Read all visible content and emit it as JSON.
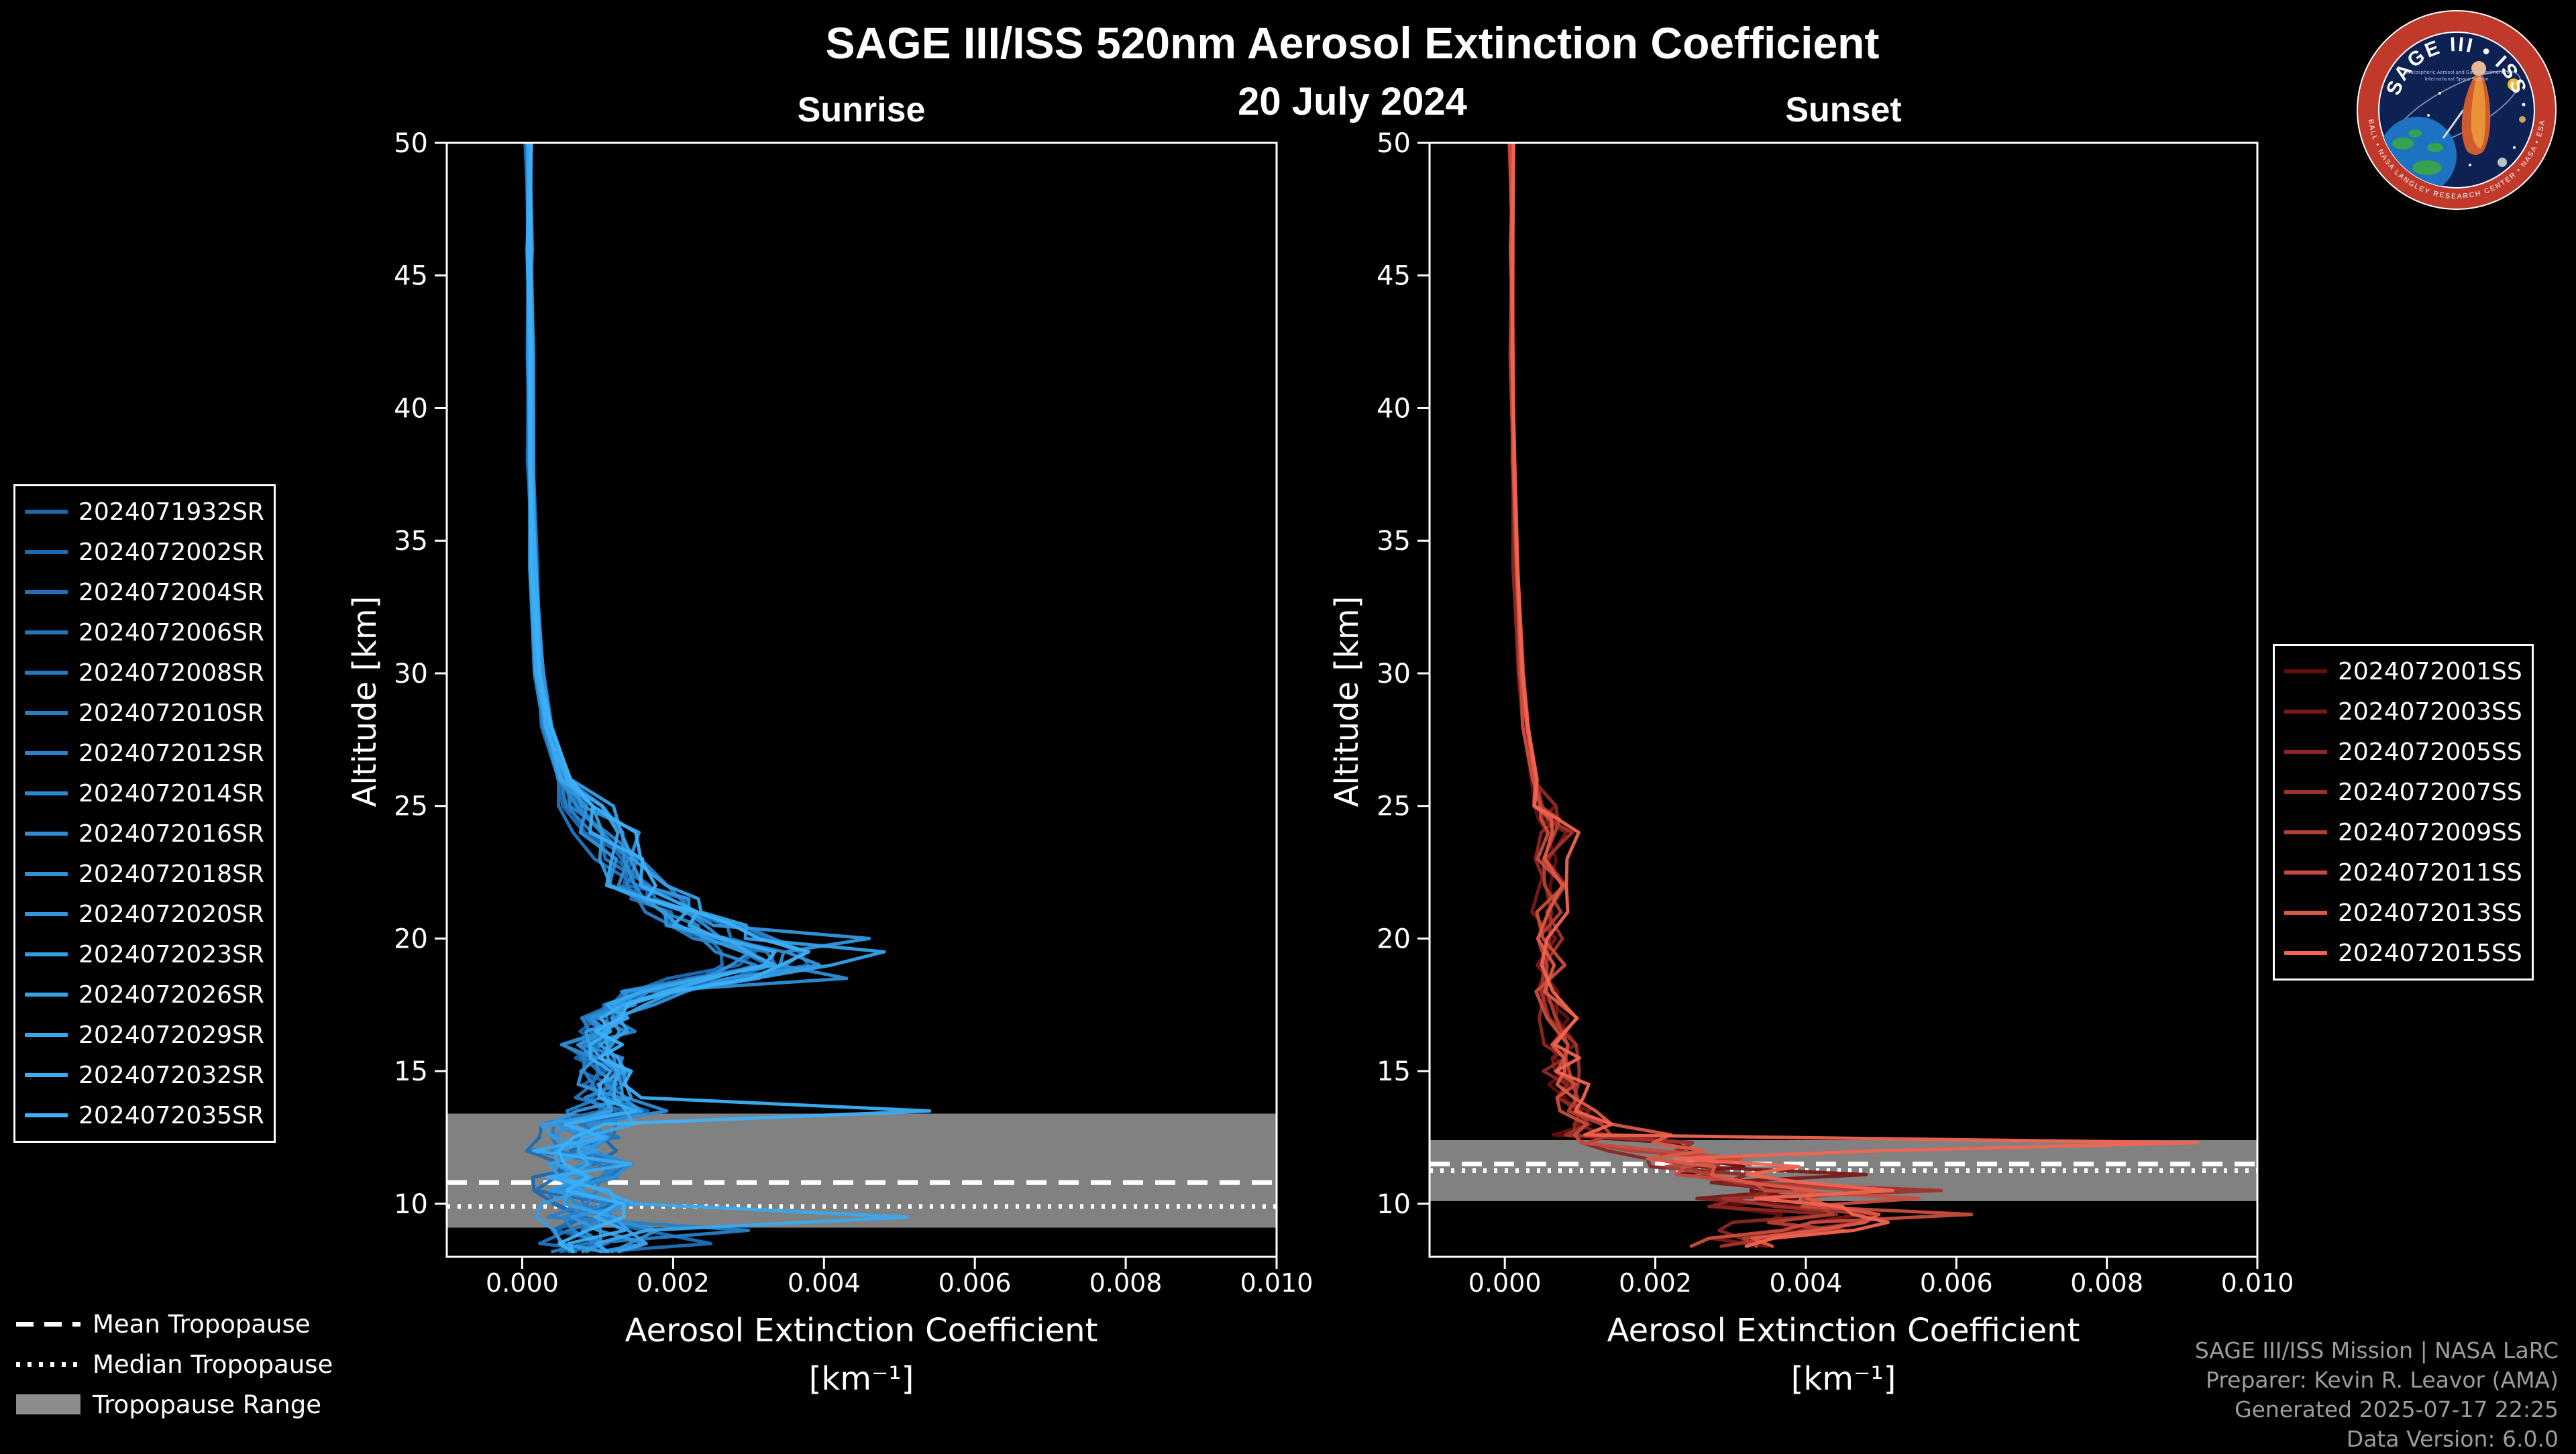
{
  "header": {
    "title": "SAGE III/ISS 520nm Aerosol Extinction Coefficient",
    "date": "20 July 2024"
  },
  "logo": {
    "name": "SAGE III • ISS",
    "subtitle_1": "Stratospheric Aerosol and Gas Experiment III",
    "subtitle_2": "International Space Station",
    "ring_text": "BALL • NASA LANGLEY RESEARCH CENTER • NASA • ESA"
  },
  "tropopause_legend": {
    "mean_label": "Mean Tropopause",
    "median_label": "Median Tropopause",
    "range_label": "Tropopause Range"
  },
  "credits": {
    "line1": "SAGE III/ISS Mission | NASA LaRC",
    "line2": "Preparer: Kevin R. Leavor (AMA)",
    "line3": "Generated 2025-07-17 22:25",
    "line4": "Data Version: 6.0.0"
  },
  "colors": {
    "background": "#000000",
    "foreground": "#ffffff",
    "credits_text": "#9c9ca0",
    "tropopause_band": "#8c8c8c",
    "sunrise_accent": "#2f92da",
    "sunset_accent": "#dc5847"
  },
  "chart_data": [
    {
      "type": "line",
      "title": "Sunrise",
      "ylabel": "Altitude [km]",
      "xlabel": "Aerosol Extinction Coefficient",
      "xlabel_units": "[km⁻¹]",
      "xlim": [
        -0.001,
        0.01
      ],
      "ylim": [
        8,
        50
      ],
      "xticks": [
        0,
        0.002,
        0.004,
        0.006,
        0.008,
        0.01
      ],
      "xtick_labels": [
        "0.000",
        "0.002",
        "0.004",
        "0.006",
        "0.008",
        "0.010"
      ],
      "yticks": [
        10,
        15,
        20,
        25,
        30,
        35,
        40,
        45,
        50
      ],
      "grid": false,
      "legend_position": "outside-left",
      "tropopause": {
        "mean": 10.8,
        "median": 9.9,
        "range": [
          9.1,
          13.4
        ]
      },
      "base_profile": {
        "altitude": [
          50,
          46,
          42,
          38,
          34,
          30,
          28,
          26,
          25,
          24,
          23,
          22,
          21.5,
          21,
          20.5,
          20,
          19.5,
          19,
          18.5,
          18,
          17.5,
          17,
          16.5,
          16,
          15.5,
          15,
          14.5,
          14,
          13.5,
          13,
          12.5,
          12,
          11.5,
          11,
          10.5,
          10,
          9.5,
          9,
          8.5,
          8.2
        ],
        "extinction": [
          8e-05,
          9e-05,
          0.0001,
          0.00012,
          0.00015,
          0.00022,
          0.00032,
          0.00055,
          0.0008,
          0.0011,
          0.0013,
          0.0015,
          0.0017,
          0.002,
          0.0023,
          0.0027,
          0.0032,
          0.0033,
          0.0025,
          0.0017,
          0.0013,
          0.00115,
          0.00105,
          0.00095,
          0.001,
          0.00105,
          0.0011,
          0.00115,
          0.0012,
          0.0009,
          0.00075,
          0.0007,
          0.0008,
          0.0007,
          0.0006,
          0.0009,
          0.0008,
          0.0011,
          0.00095,
          0.001
        ]
      },
      "jitter_bands": [
        {
          "min_alt": 26,
          "amp": 4e-05
        },
        {
          "min_alt": 14,
          "amp": 0.00032
        },
        {
          "min_alt": 0,
          "amp": 0.00065
        }
      ],
      "series": [
        {
          "label": "2024071932SR",
          "color": "#1b66ae",
          "scale": 1.0,
          "spikes": []
        },
        {
          "label": "2024072002SR",
          "color": "#1d6bb3",
          "scale": 0.9,
          "spikes": []
        },
        {
          "label": "2024072004SR",
          "color": "#2070b8",
          "scale": 1.1,
          "spikes": [
            [
              8.5,
              0.0025
            ]
          ]
        },
        {
          "label": "2024072006SR",
          "color": "#2275bd",
          "scale": 0.85,
          "spikes": []
        },
        {
          "label": "2024072008SR",
          "color": "#247ac1",
          "scale": 1.05,
          "spikes": []
        },
        {
          "label": "2024072010SR",
          "color": "#267fc6",
          "scale": 0.95,
          "spikes": [
            [
              9.0,
              0.003
            ]
          ]
        },
        {
          "label": "2024072012SR",
          "color": "#2984cb",
          "scale": 1.15,
          "spikes": []
        },
        {
          "label": "2024072014SR",
          "color": "#2b89d0",
          "scale": 0.88,
          "spikes": []
        },
        {
          "label": "2024072016SR",
          "color": "#2d8dd5",
          "scale": 1.08,
          "spikes": [
            [
              18.5,
              0.0043
            ]
          ]
        },
        {
          "label": "2024072018SR",
          "color": "#2f92da",
          "scale": 0.92,
          "spikes": []
        },
        {
          "label": "2024072020SR",
          "color": "#3297df",
          "scale": 1.12,
          "spikes": [
            [
              20.0,
              0.0046
            ]
          ]
        },
        {
          "label": "2024072023SR",
          "color": "#349ce3",
          "scale": 0.98,
          "spikes": []
        },
        {
          "label": "2024072026SR",
          "color": "#36a1e8",
          "scale": 1.2,
          "spikes": [
            [
              19.5,
              0.0048
            ],
            [
              19.0,
              0.0041
            ]
          ]
        },
        {
          "label": "2024072029SR",
          "color": "#39a6ed",
          "scale": 0.94,
          "spikes": [
            [
              9.5,
              0.0051
            ]
          ]
        },
        {
          "label": "2024072032SR",
          "color": "#3babf2",
          "scale": 1.02,
          "spikes": []
        },
        {
          "label": "2024072035SR",
          "color": "#3db0f7",
          "scale": 1.1,
          "spikes": [
            [
              13.5,
              0.0054
            ]
          ]
        }
      ]
    },
    {
      "type": "line",
      "title": "Sunset",
      "ylabel": "Altitude [km]",
      "xlabel": "Aerosol Extinction Coefficient",
      "xlabel_units": "[km⁻¹]",
      "xlim": [
        -0.001,
        0.01
      ],
      "ylim": [
        8,
        50
      ],
      "xticks": [
        0,
        0.002,
        0.004,
        0.006,
        0.008,
        0.01
      ],
      "xtick_labels": [
        "0.000",
        "0.002",
        "0.004",
        "0.006",
        "0.008",
        "0.010"
      ],
      "yticks": [
        10,
        15,
        20,
        25,
        30,
        35,
        40,
        45,
        50
      ],
      "grid": false,
      "legend_position": "outside-right",
      "tropopause": {
        "mean": 11.5,
        "median": 11.25,
        "range": [
          10.1,
          12.4
        ]
      },
      "base_profile": {
        "altitude": [
          50,
          46,
          42,
          38,
          34,
          30,
          28,
          26,
          25,
          24.5,
          24,
          23,
          22,
          21,
          20,
          19,
          18,
          17,
          16,
          15.5,
          15,
          14.5,
          14,
          13.5,
          13,
          12.6,
          12.3,
          12,
          11.7,
          11.4,
          11.1,
          10.8,
          10.5,
          10.2,
          9.9,
          9.6,
          9.3,
          9,
          8.7,
          8.4
        ],
        "extinction": [
          8e-05,
          9e-05,
          0.0001,
          0.00012,
          0.00015,
          0.0002,
          0.00026,
          0.00038,
          0.00052,
          0.00065,
          0.00072,
          0.00064,
          0.00058,
          0.00056,
          0.00058,
          0.0006,
          0.00063,
          0.00068,
          0.00074,
          0.00085,
          0.00075,
          0.0008,
          0.00085,
          0.00095,
          0.0011,
          0.00135,
          0.0017,
          0.0021,
          0.0024,
          0.0027,
          0.003,
          0.0034,
          0.0038,
          0.0033,
          0.0036,
          0.0042,
          0.0039,
          0.0036,
          0.0031,
          0.0028
        ]
      },
      "jitter_bands": [
        {
          "min_alt": 26,
          "amp": 3e-05
        },
        {
          "min_alt": 13,
          "amp": 0.00022
        },
        {
          "min_alt": 0,
          "amp": 0.0008
        }
      ],
      "series": [
        {
          "label": "2024072001SS",
          "color": "#640e0e",
          "scale": 0.95,
          "spikes": []
        },
        {
          "label": "2024072003SS",
          "color": "#781a17",
          "scale": 1.0,
          "spikes": [
            [
              11.1,
              0.0048
            ]
          ]
        },
        {
          "label": "2024072005SS",
          "color": "#8c2721",
          "scale": 0.9,
          "spikes": []
        },
        {
          "label": "2024072007SS",
          "color": "#a0332a",
          "scale": 1.1,
          "spikes": [
            [
              10.5,
              0.0058
            ]
          ]
        },
        {
          "label": "2024072009SS",
          "color": "#b43f34",
          "scale": 1.05,
          "spikes": [
            [
              9.0,
              0.0045
            ]
          ]
        },
        {
          "label": "2024072011SS",
          "color": "#c84c3d",
          "scale": 1.0,
          "spikes": [
            [
              9.6,
              0.0062
            ],
            [
              10.2,
              0.0055
            ]
          ]
        },
        {
          "label": "2024072013SS",
          "color": "#dc5847",
          "scale": 1.1,
          "spikes": []
        },
        {
          "label": "2024072015SS",
          "color": "#f06450",
          "scale": 1.15,
          "spikes": [
            [
              12.3,
              0.0092
            ],
            [
              12.0,
              0.005
            ]
          ]
        }
      ]
    }
  ]
}
